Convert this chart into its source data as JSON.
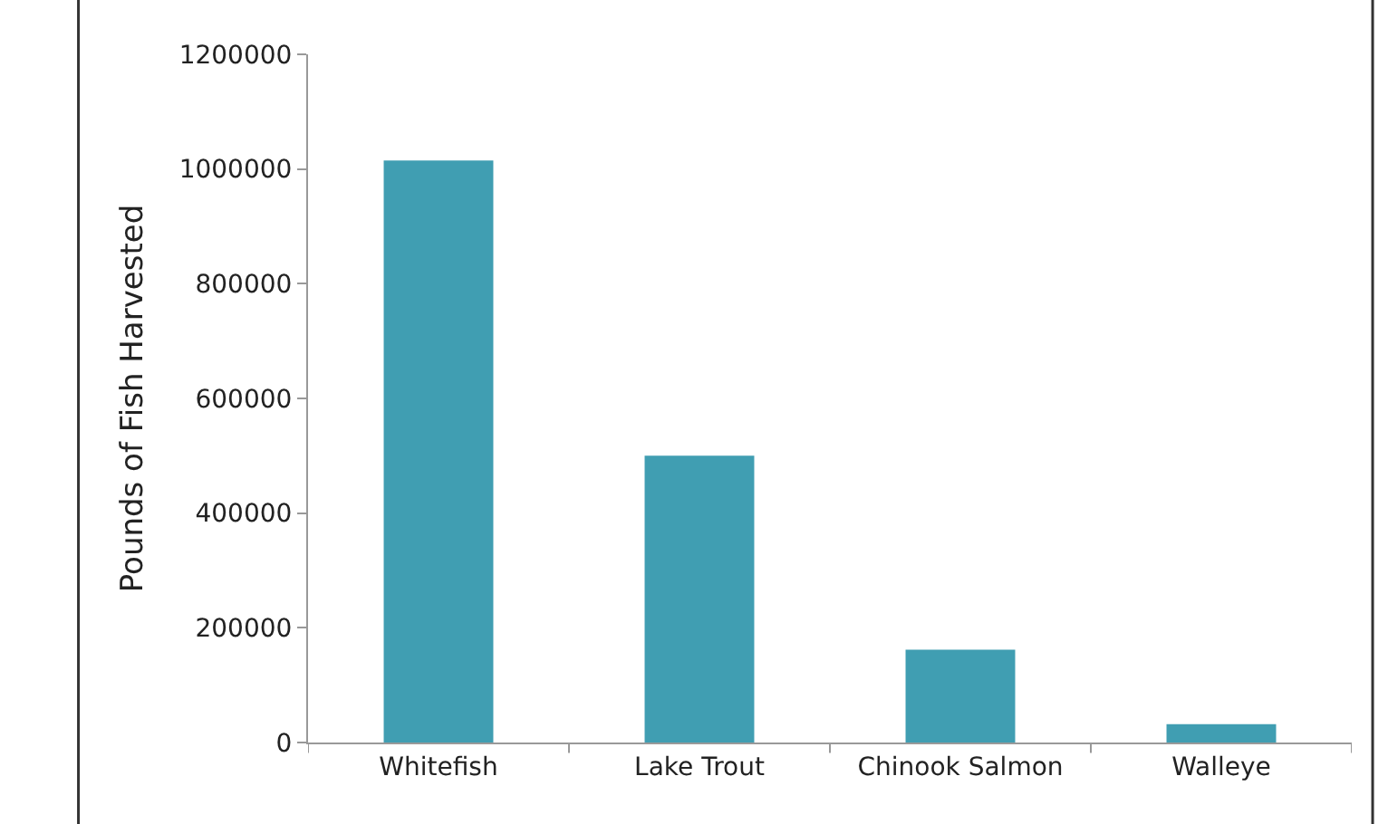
{
  "chart_data": {
    "type": "bar",
    "ylabel": "Pounds of Fish Harvested",
    "categories": [
      "Whitefish",
      "Lake Trout",
      "Chinook Salmon",
      "Walleye"
    ],
    "values": [
      1015000,
      500000,
      162000,
      32000
    ],
    "color": "#409eb2",
    "ylim": [
      0,
      1200000
    ],
    "yticks": [
      0,
      200000,
      400000,
      600000,
      800000,
      1000000,
      1200000
    ]
  }
}
